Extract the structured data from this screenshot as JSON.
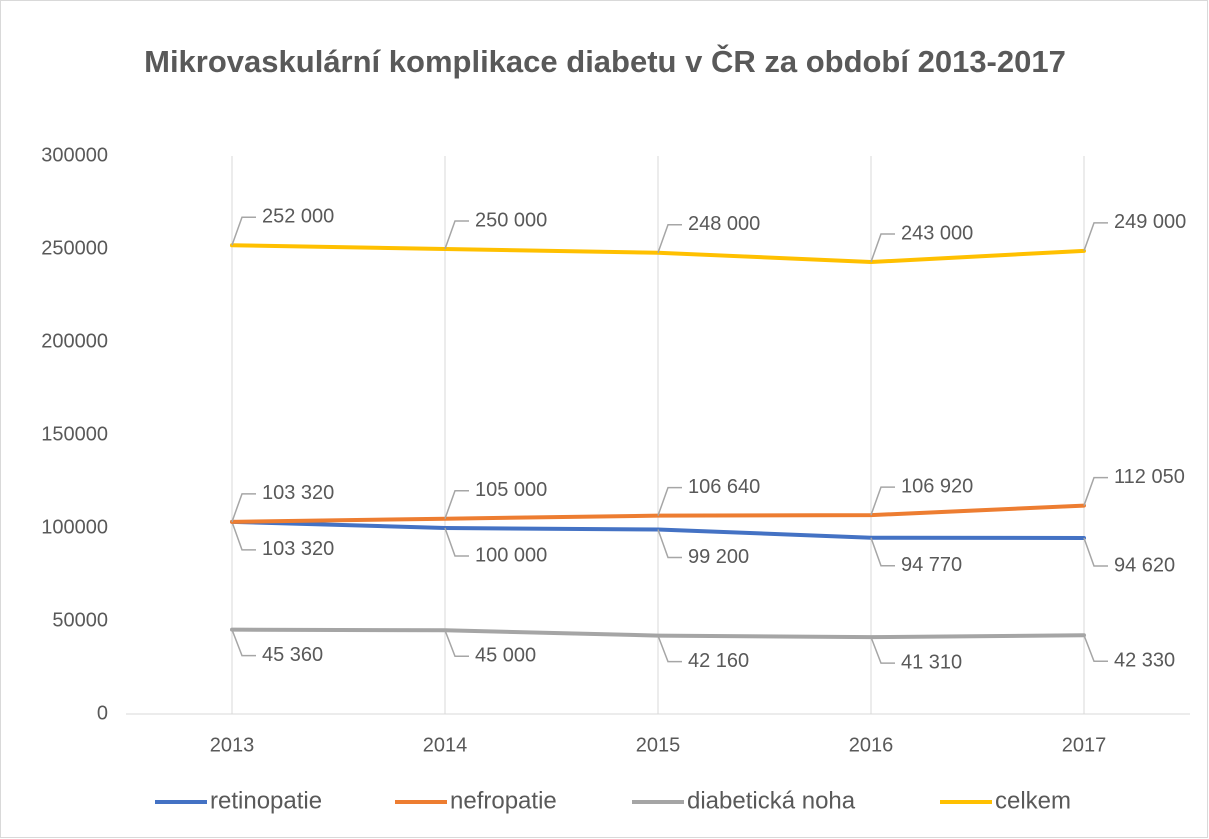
{
  "chart_data": {
    "type": "line",
    "title": "Mikrovaskulární komplikace diabetu v ČR za období 2013-2017",
    "categories": [
      "2013",
      "2014",
      "2015",
      "2016",
      "2017"
    ],
    "series": [
      {
        "name": "retinopatie",
        "color": "#4472c4",
        "values": [
          103320,
          100000,
          99200,
          94770,
          94620
        ],
        "value_labels": [
          "103 320",
          "100 000",
          "99 200",
          "94 770",
          "94 620"
        ]
      },
      {
        "name": "nefropatie",
        "color": "#ed7d31",
        "values": [
          103320,
          105000,
          106640,
          106920,
          112050
        ],
        "value_labels": [
          "103 320",
          "105 000",
          "106 640",
          "106 920",
          "112 050"
        ]
      },
      {
        "name": "diabetická noha",
        "color": "#a5a5a5",
        "values": [
          45360,
          45000,
          42160,
          41310,
          42330
        ],
        "value_labels": [
          "45 360",
          "45 000",
          "42 160",
          "41 310",
          "42 330"
        ]
      },
      {
        "name": "celkem",
        "color": "#ffc000",
        "values": [
          252000,
          250000,
          248000,
          243000,
          249000
        ],
        "value_labels": [
          "252 000",
          "250 000",
          "248 000",
          "243 000",
          "249 000"
        ]
      }
    ],
    "ylim": [
      0,
      300000
    ],
    "yticks": [
      0,
      50000,
      100000,
      150000,
      200000,
      250000,
      300000
    ],
    "grid": "x",
    "legend": "bottom"
  }
}
